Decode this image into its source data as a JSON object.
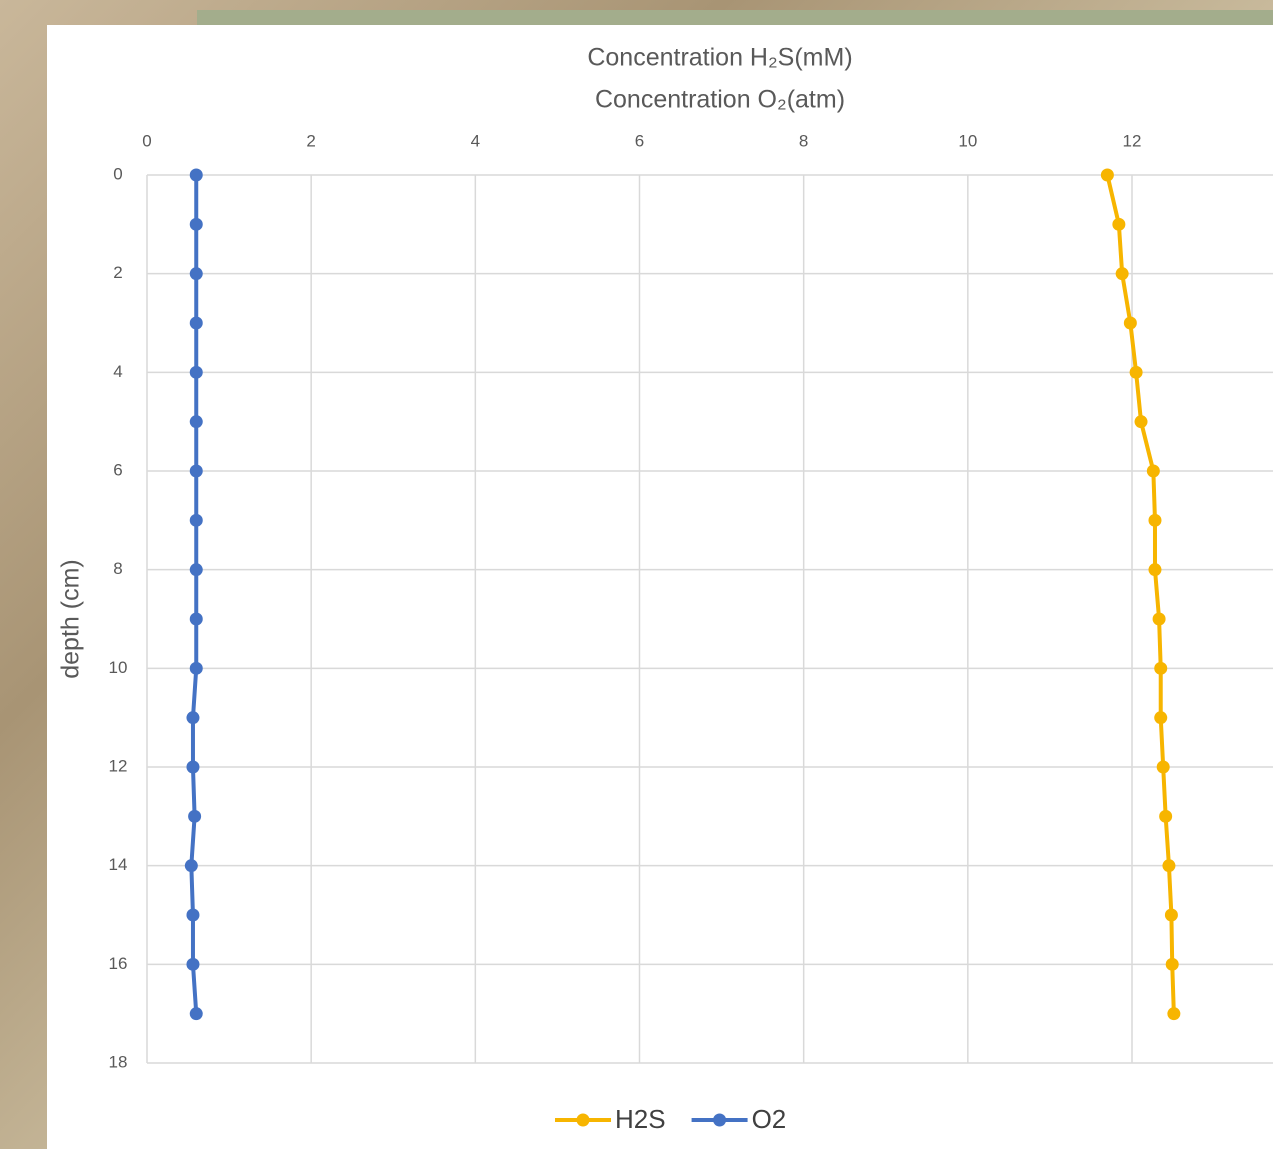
{
  "chart_data": {
    "type": "line",
    "x_label": [
      "Concentration H₂S(mM)",
      "Concentration O₂(atm)"
    ],
    "y_label": "depth (cm)",
    "y": [
      0,
      1,
      2,
      3,
      4,
      5,
      6,
      7,
      8,
      9,
      10,
      11,
      12,
      13,
      14,
      15,
      16,
      17
    ],
    "series": [
      {
        "name": "H2S",
        "color": "#f7b500",
        "values": [
          11.7,
          11.84,
          11.88,
          11.98,
          12.05,
          12.11,
          12.26,
          12.28,
          12.28,
          12.33,
          12.35,
          12.35,
          12.38,
          12.41,
          12.45,
          12.48,
          12.49,
          12.51
        ]
      },
      {
        "name": "O2",
        "color": "#4472c4",
        "values": [
          0.6,
          0.6,
          0.6,
          0.6,
          0.6,
          0.6,
          0.6,
          0.6,
          0.6,
          0.6,
          0.6,
          0.56,
          0.56,
          0.58,
          0.54,
          0.56,
          0.56,
          0.6
        ]
      }
    ],
    "xlim": [
      0,
      14
    ],
    "xticks": [
      0,
      2,
      4,
      6,
      8,
      10,
      12
    ],
    "ylim": [
      0,
      18
    ],
    "yticks": [
      0,
      2,
      4,
      6,
      8,
      10,
      12,
      14,
      16,
      18
    ],
    "y_reversed": true,
    "grid": true,
    "legend": "bottom"
  }
}
